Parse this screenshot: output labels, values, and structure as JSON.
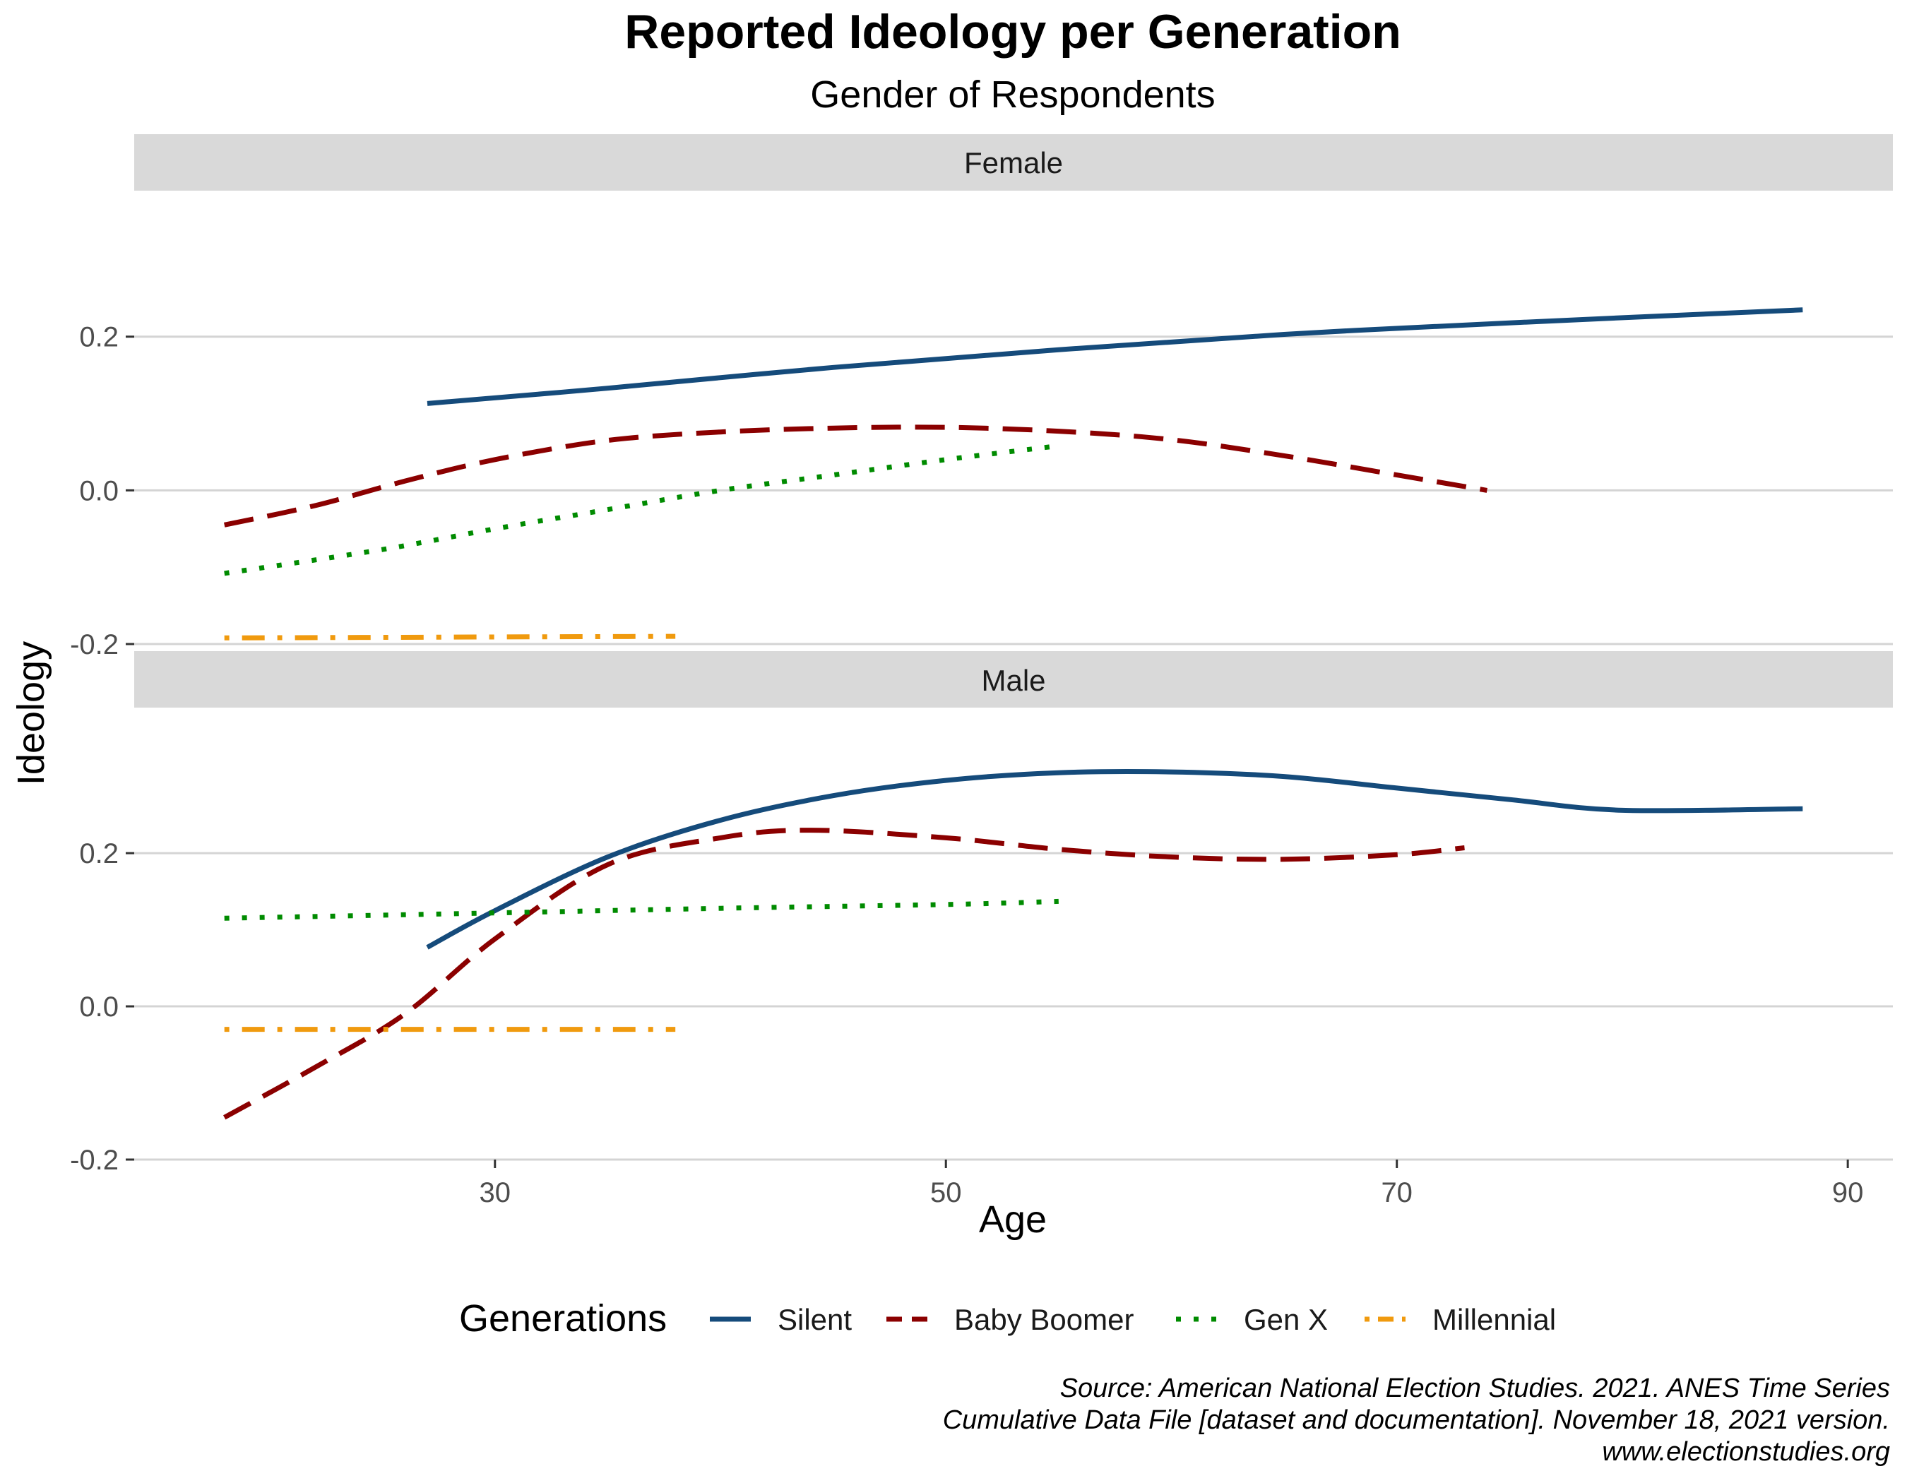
{
  "chart_data": {
    "type": "line",
    "title": "Reported Ideology per Generation",
    "subtitle": "Gender of Respondents",
    "xlabel": "Age",
    "ylabel": "Ideology",
    "xlim": [
      14,
      92
    ],
    "ylim": [
      -0.2,
      0.39
    ],
    "x_ticks": [
      {
        "value": 30,
        "label": "30"
      },
      {
        "value": 50,
        "label": "50"
      },
      {
        "value": 70,
        "label": "70"
      },
      {
        "value": 90,
        "label": "90"
      }
    ],
    "y_ticks": [
      {
        "value": 0.2,
        "label": "0.2"
      },
      {
        "value": 0.0,
        "label": "0.0"
      },
      {
        "value": -0.2,
        "label": "-0.2"
      }
    ],
    "legend": {
      "title": "Generations",
      "position": "bottom",
      "items": [
        "Silent",
        "Baby Boomer",
        "Gen X",
        "Millennial"
      ]
    },
    "series_styles": [
      {
        "name": "Silent",
        "color": "#154B7B",
        "dash": "solid"
      },
      {
        "name": "Baby Boomer",
        "color": "#8B0000",
        "dash": "dashed"
      },
      {
        "name": "Gen X",
        "color": "#008B00",
        "dash": "dotted"
      },
      {
        "name": "Millennial",
        "color": "#F09A0E",
        "dash": "dotdash"
      }
    ],
    "panels": [
      {
        "name": "Female",
        "series": [
          {
            "name": "Silent",
            "x": [
              27,
              35,
              45,
              55,
              65,
              75,
              88
            ],
            "y": [
              0.113,
              0.133,
              0.16,
              0.183,
              0.203,
              0.218,
              0.235
            ]
          },
          {
            "name": "Baby Boomer",
            "x": [
              18,
              22,
              26,
              30,
              35,
              40,
              45,
              50,
              55,
              60,
              65,
              70,
              74
            ],
            "y": [
              -0.045,
              -0.02,
              0.012,
              0.04,
              0.065,
              0.076,
              0.081,
              0.082,
              0.077,
              0.066,
              0.045,
              0.02,
              0.0
            ]
          },
          {
            "name": "Gen X",
            "x": [
              18,
              25,
              30,
              35,
              40,
              45,
              50,
              55
            ],
            "y": [
              -0.108,
              -0.077,
              -0.05,
              -0.025,
              0.0,
              0.02,
              0.04,
              0.058
            ]
          },
          {
            "name": "Millennial",
            "x": [
              18,
              28,
              38
            ],
            "y": [
              -0.192,
              -0.191,
              -0.19
            ]
          }
        ]
      },
      {
        "name": "Male",
        "series": [
          {
            "name": "Silent",
            "x": [
              27,
              30,
              35,
              40,
              45,
              50,
              55,
              60,
              65,
              70,
              75,
              80,
              88
            ],
            "y": [
              0.077,
              0.125,
              0.195,
              0.243,
              0.275,
              0.295,
              0.305,
              0.306,
              0.3,
              0.285,
              0.27,
              0.256,
              0.258
            ]
          },
          {
            "name": "Baby Boomer",
            "x": [
              18,
              22,
              26,
              30,
              35,
              40,
              44,
              50,
              55,
              60,
              65,
              70,
              73
            ],
            "y": [
              -0.145,
              -0.08,
              -0.01,
              0.088,
              0.185,
              0.22,
              0.23,
              0.22,
              0.205,
              0.195,
              0.192,
              0.198,
              0.207
            ]
          },
          {
            "name": "Gen X",
            "x": [
              18,
              30,
              40,
              50,
              55
            ],
            "y": [
              0.115,
              0.122,
              0.128,
              0.133,
              0.137
            ]
          },
          {
            "name": "Millennial",
            "x": [
              18,
              28,
              38
            ],
            "y": [
              -0.03,
              -0.03,
              -0.03
            ]
          }
        ]
      }
    ],
    "caption": [
      "Source: American National Election Studies. 2021. ANES Time Series",
      "Cumulative Data File [dataset and documentation]. November 18, 2021 version.",
      "www.electionstudies.org"
    ]
  }
}
